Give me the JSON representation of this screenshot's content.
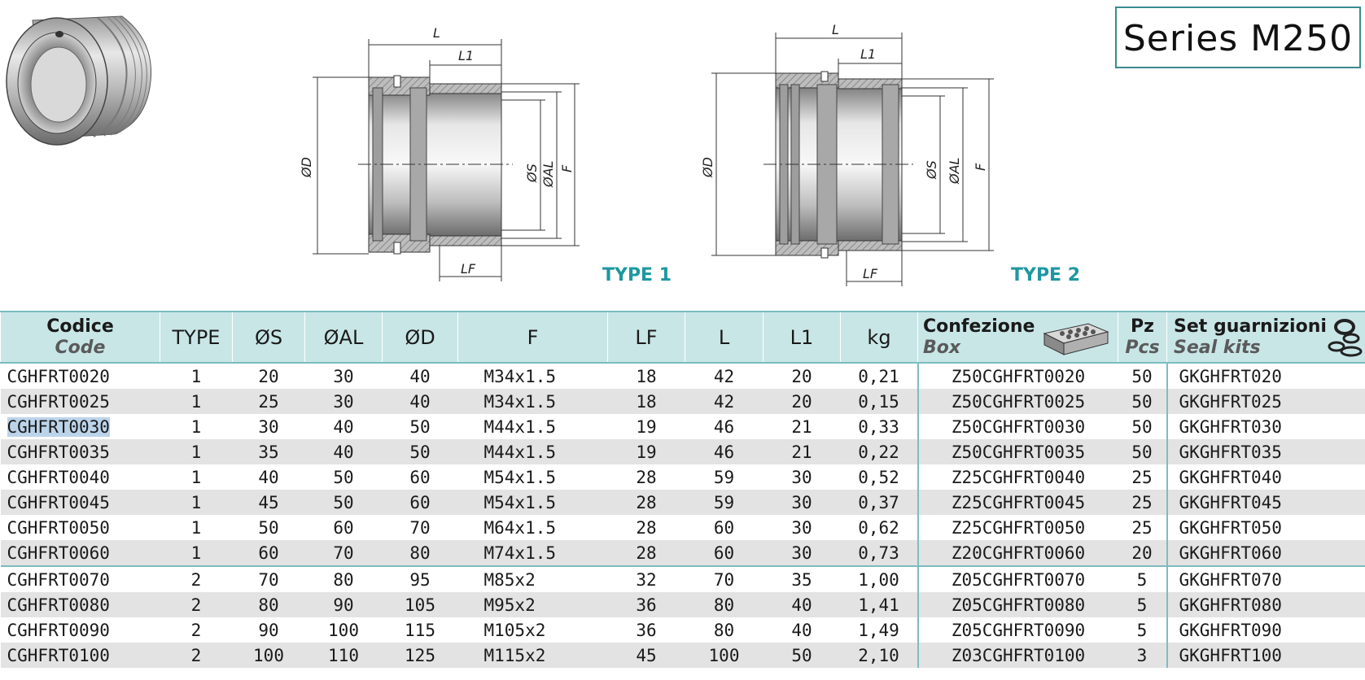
{
  "series_title": "Series M250",
  "diagram": {
    "type1": {
      "label": "TYPE 1",
      "dim_L": "L",
      "dim_L1": "L1",
      "dim_LF": "LF",
      "dim_D": "ØD",
      "dim_S": "ØS",
      "dim_AL": "ØAL",
      "dim_F": "F"
    },
    "type2": {
      "label": "TYPE 2",
      "dim_L": "L",
      "dim_L1": "L1",
      "dim_LF": "LF",
      "dim_D": "ØD",
      "dim_S": "ØS",
      "dim_AL": "ØAL",
      "dim_F": "F"
    }
  },
  "table": {
    "headers": {
      "code_it": "Codice",
      "code_en": "Code",
      "type": "TYPE",
      "s": "ØS",
      "al": "ØAL",
      "d": "ØD",
      "f": "F",
      "lf": "LF",
      "l": "L",
      "l1": "L1",
      "kg": "kg",
      "box_it": "Confezione",
      "box_en": "Box",
      "pz_it": "Pz",
      "pz_en": "Pcs",
      "seal_it": "Set guarnizioni",
      "seal_en": "Seal kits"
    },
    "rows": [
      {
        "code": "CGHFRT0020",
        "type": "1",
        "s": "20",
        "al": "30",
        "d": "40",
        "f": "M34x1.5",
        "lf": "18",
        "l": "42",
        "l1": "20",
        "kg": "0,21",
        "box": "Z50CGHFRT0020",
        "pz": "50",
        "seal": "GKGHFRT020"
      },
      {
        "code": "CGHFRT0025",
        "type": "1",
        "s": "25",
        "al": "30",
        "d": "40",
        "f": "M34x1.5",
        "lf": "18",
        "l": "42",
        "l1": "20",
        "kg": "0,15",
        "box": "Z50CGHFRT0025",
        "pz": "50",
        "seal": "GKGHFRT025"
      },
      {
        "code": "CGHFRT0030",
        "type": "1",
        "s": "30",
        "al": "40",
        "d": "50",
        "f": "M44x1.5",
        "lf": "19",
        "l": "46",
        "l1": "21",
        "kg": "0,33",
        "box": "Z50CGHFRT0030",
        "pz": "50",
        "seal": "GKGHFRT030"
      },
      {
        "code": "CGHFRT0035",
        "type": "1",
        "s": "35",
        "al": "40",
        "d": "50",
        "f": "M44x1.5",
        "lf": "19",
        "l": "46",
        "l1": "21",
        "kg": "0,22",
        "box": "Z50CGHFRT0035",
        "pz": "50",
        "seal": "GKGHFRT035"
      },
      {
        "code": "CGHFRT0040",
        "type": "1",
        "s": "40",
        "al": "50",
        "d": "60",
        "f": "M54x1.5",
        "lf": "28",
        "l": "59",
        "l1": "30",
        "kg": "0,52",
        "box": "Z25CGHFRT0040",
        "pz": "25",
        "seal": "GKGHFRT040"
      },
      {
        "code": "CGHFRT0045",
        "type": "1",
        "s": "45",
        "al": "50",
        "d": "60",
        "f": "M54x1.5",
        "lf": "28",
        "l": "59",
        "l1": "30",
        "kg": "0,37",
        "box": "Z25CGHFRT0045",
        "pz": "25",
        "seal": "GKGHFRT045"
      },
      {
        "code": "CGHFRT0050",
        "type": "1",
        "s": "50",
        "al": "60",
        "d": "70",
        "f": "M64x1.5",
        "lf": "28",
        "l": "60",
        "l1": "30",
        "kg": "0,62",
        "box": "Z25CGHFRT0050",
        "pz": "25",
        "seal": "GKGHFRT050"
      },
      {
        "code": "CGHFRT0060",
        "type": "1",
        "s": "60",
        "al": "70",
        "d": "80",
        "f": "M74x1.5",
        "lf": "28",
        "l": "60",
        "l1": "30",
        "kg": "0,73",
        "box": "Z20CGHFRT0060",
        "pz": "20",
        "seal": "GKGHFRT060"
      },
      {
        "code": "CGHFRT0070",
        "type": "2",
        "s": "70",
        "al": "80",
        "d": "95",
        "f": "M85x2",
        "lf": "32",
        "l": "70",
        "l1": "35",
        "kg": "1,00",
        "box": "Z05CGHFRT0070",
        "pz": "5",
        "seal": "GKGHFRT070"
      },
      {
        "code": "CGHFRT0080",
        "type": "2",
        "s": "80",
        "al": "90",
        "d": "105",
        "f": "M95x2",
        "lf": "36",
        "l": "80",
        "l1": "40",
        "kg": "1,41",
        "box": "Z05CGHFRT0080",
        "pz": "5",
        "seal": "GKGHFRT080"
      },
      {
        "code": "CGHFRT0090",
        "type": "2",
        "s": "90",
        "al": "100",
        "d": "115",
        "f": "M105x2",
        "lf": "36",
        "l": "80",
        "l1": "40",
        "kg": "1,49",
        "box": "Z05CGHFRT0090",
        "pz": "5",
        "seal": "GKGHFRT090"
      },
      {
        "code": "CGHFRT0100",
        "type": "2",
        "s": "100",
        "al": "110",
        "d": "125",
        "f": "M115x2",
        "lf": "45",
        "l": "100",
        "l1": "50",
        "kg": "2,10",
        "box": "Z03CGHFRT0100",
        "pz": "3",
        "seal": "GKGHFRT100"
      }
    ]
  },
  "colors": {
    "accent": "#1d98a0",
    "header_bg": "#c9e6e7",
    "row_alt": "#e3e3e3",
    "line": "#7cbcbf",
    "highlight": "#bcd4ea"
  },
  "icons": {
    "product": "bushing-product-photo",
    "box": "packaging-box-icon",
    "seal": "seal-rings-icon"
  }
}
